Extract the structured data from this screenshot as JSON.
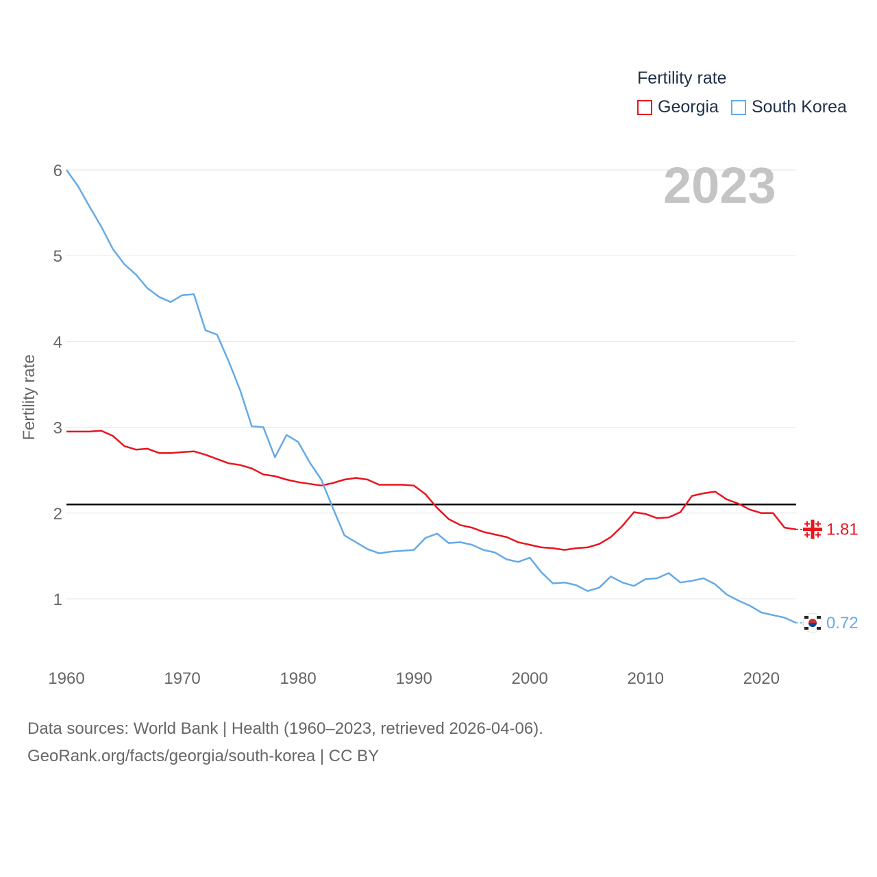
{
  "chart_data": {
    "type": "line",
    "title": "",
    "xlabel": "",
    "ylabel": "Fertility rate",
    "year_stamp": "2023",
    "xlim": [
      1960,
      2023
    ],
    "ylim": [
      0.5,
      6.2
    ],
    "x_ticks": [
      1960,
      1970,
      1980,
      1990,
      2000,
      2010,
      2020
    ],
    "y_ticks": [
      1,
      2,
      3,
      4,
      5,
      6
    ],
    "reference_line": {
      "y": 2.1,
      "color": "#000000"
    },
    "legend": {
      "title": "Fertility rate",
      "position": "top-right"
    },
    "x": [
      1960,
      1961,
      1962,
      1963,
      1964,
      1965,
      1966,
      1967,
      1968,
      1969,
      1970,
      1971,
      1972,
      1973,
      1974,
      1975,
      1976,
      1977,
      1978,
      1979,
      1980,
      1981,
      1982,
      1983,
      1984,
      1985,
      1986,
      1987,
      1988,
      1989,
      1990,
      1991,
      1992,
      1993,
      1994,
      1995,
      1996,
      1997,
      1998,
      1999,
      2000,
      2001,
      2002,
      2003,
      2004,
      2005,
      2006,
      2007,
      2008,
      2009,
      2010,
      2011,
      2012,
      2013,
      2014,
      2015,
      2016,
      2017,
      2018,
      2019,
      2020,
      2021,
      2022,
      2023
    ],
    "series": [
      {
        "name": "Georgia",
        "color": "#e8151f",
        "end_label": "1.81",
        "values": [
          2.95,
          2.95,
          2.95,
          2.96,
          2.9,
          2.78,
          2.74,
          2.75,
          2.7,
          2.7,
          2.71,
          2.72,
          2.68,
          2.63,
          2.58,
          2.56,
          2.52,
          2.45,
          2.43,
          2.39,
          2.36,
          2.34,
          2.32,
          2.35,
          2.39,
          2.41,
          2.39,
          2.33,
          2.33,
          2.33,
          2.32,
          2.22,
          2.06,
          1.93,
          1.86,
          1.83,
          1.78,
          1.75,
          1.72,
          1.66,
          1.63,
          1.6,
          1.59,
          1.57,
          1.59,
          1.6,
          1.64,
          1.72,
          1.85,
          2.01,
          1.99,
          1.94,
          1.95,
          2.01,
          2.2,
          2.23,
          2.25,
          2.16,
          2.11,
          2.04,
          2.0,
          2.0,
          1.83,
          1.81
        ]
      },
      {
        "name": "South Korea",
        "color": "#64aae6",
        "end_label": "0.72",
        "values": [
          6.0,
          5.81,
          5.57,
          5.34,
          5.08,
          4.9,
          4.78,
          4.62,
          4.52,
          4.46,
          4.54,
          4.55,
          4.13,
          4.08,
          3.77,
          3.43,
          3.01,
          3.0,
          2.65,
          2.91,
          2.83,
          2.59,
          2.39,
          2.06,
          1.74,
          1.66,
          1.58,
          1.53,
          1.55,
          1.56,
          1.57,
          1.71,
          1.76,
          1.65,
          1.66,
          1.63,
          1.57,
          1.54,
          1.46,
          1.43,
          1.48,
          1.31,
          1.18,
          1.19,
          1.16,
          1.09,
          1.13,
          1.26,
          1.19,
          1.15,
          1.23,
          1.24,
          1.3,
          1.19,
          1.21,
          1.24,
          1.17,
          1.05,
          0.98,
          0.92,
          0.84,
          0.81,
          0.78,
          0.72
        ]
      }
    ]
  },
  "source": {
    "line1": "Data sources: World Bank | Health (1960–2023, retrieved 2026-04-06).",
    "line2": "GeoRank.org/facts/georgia/south-korea | CC BY"
  }
}
